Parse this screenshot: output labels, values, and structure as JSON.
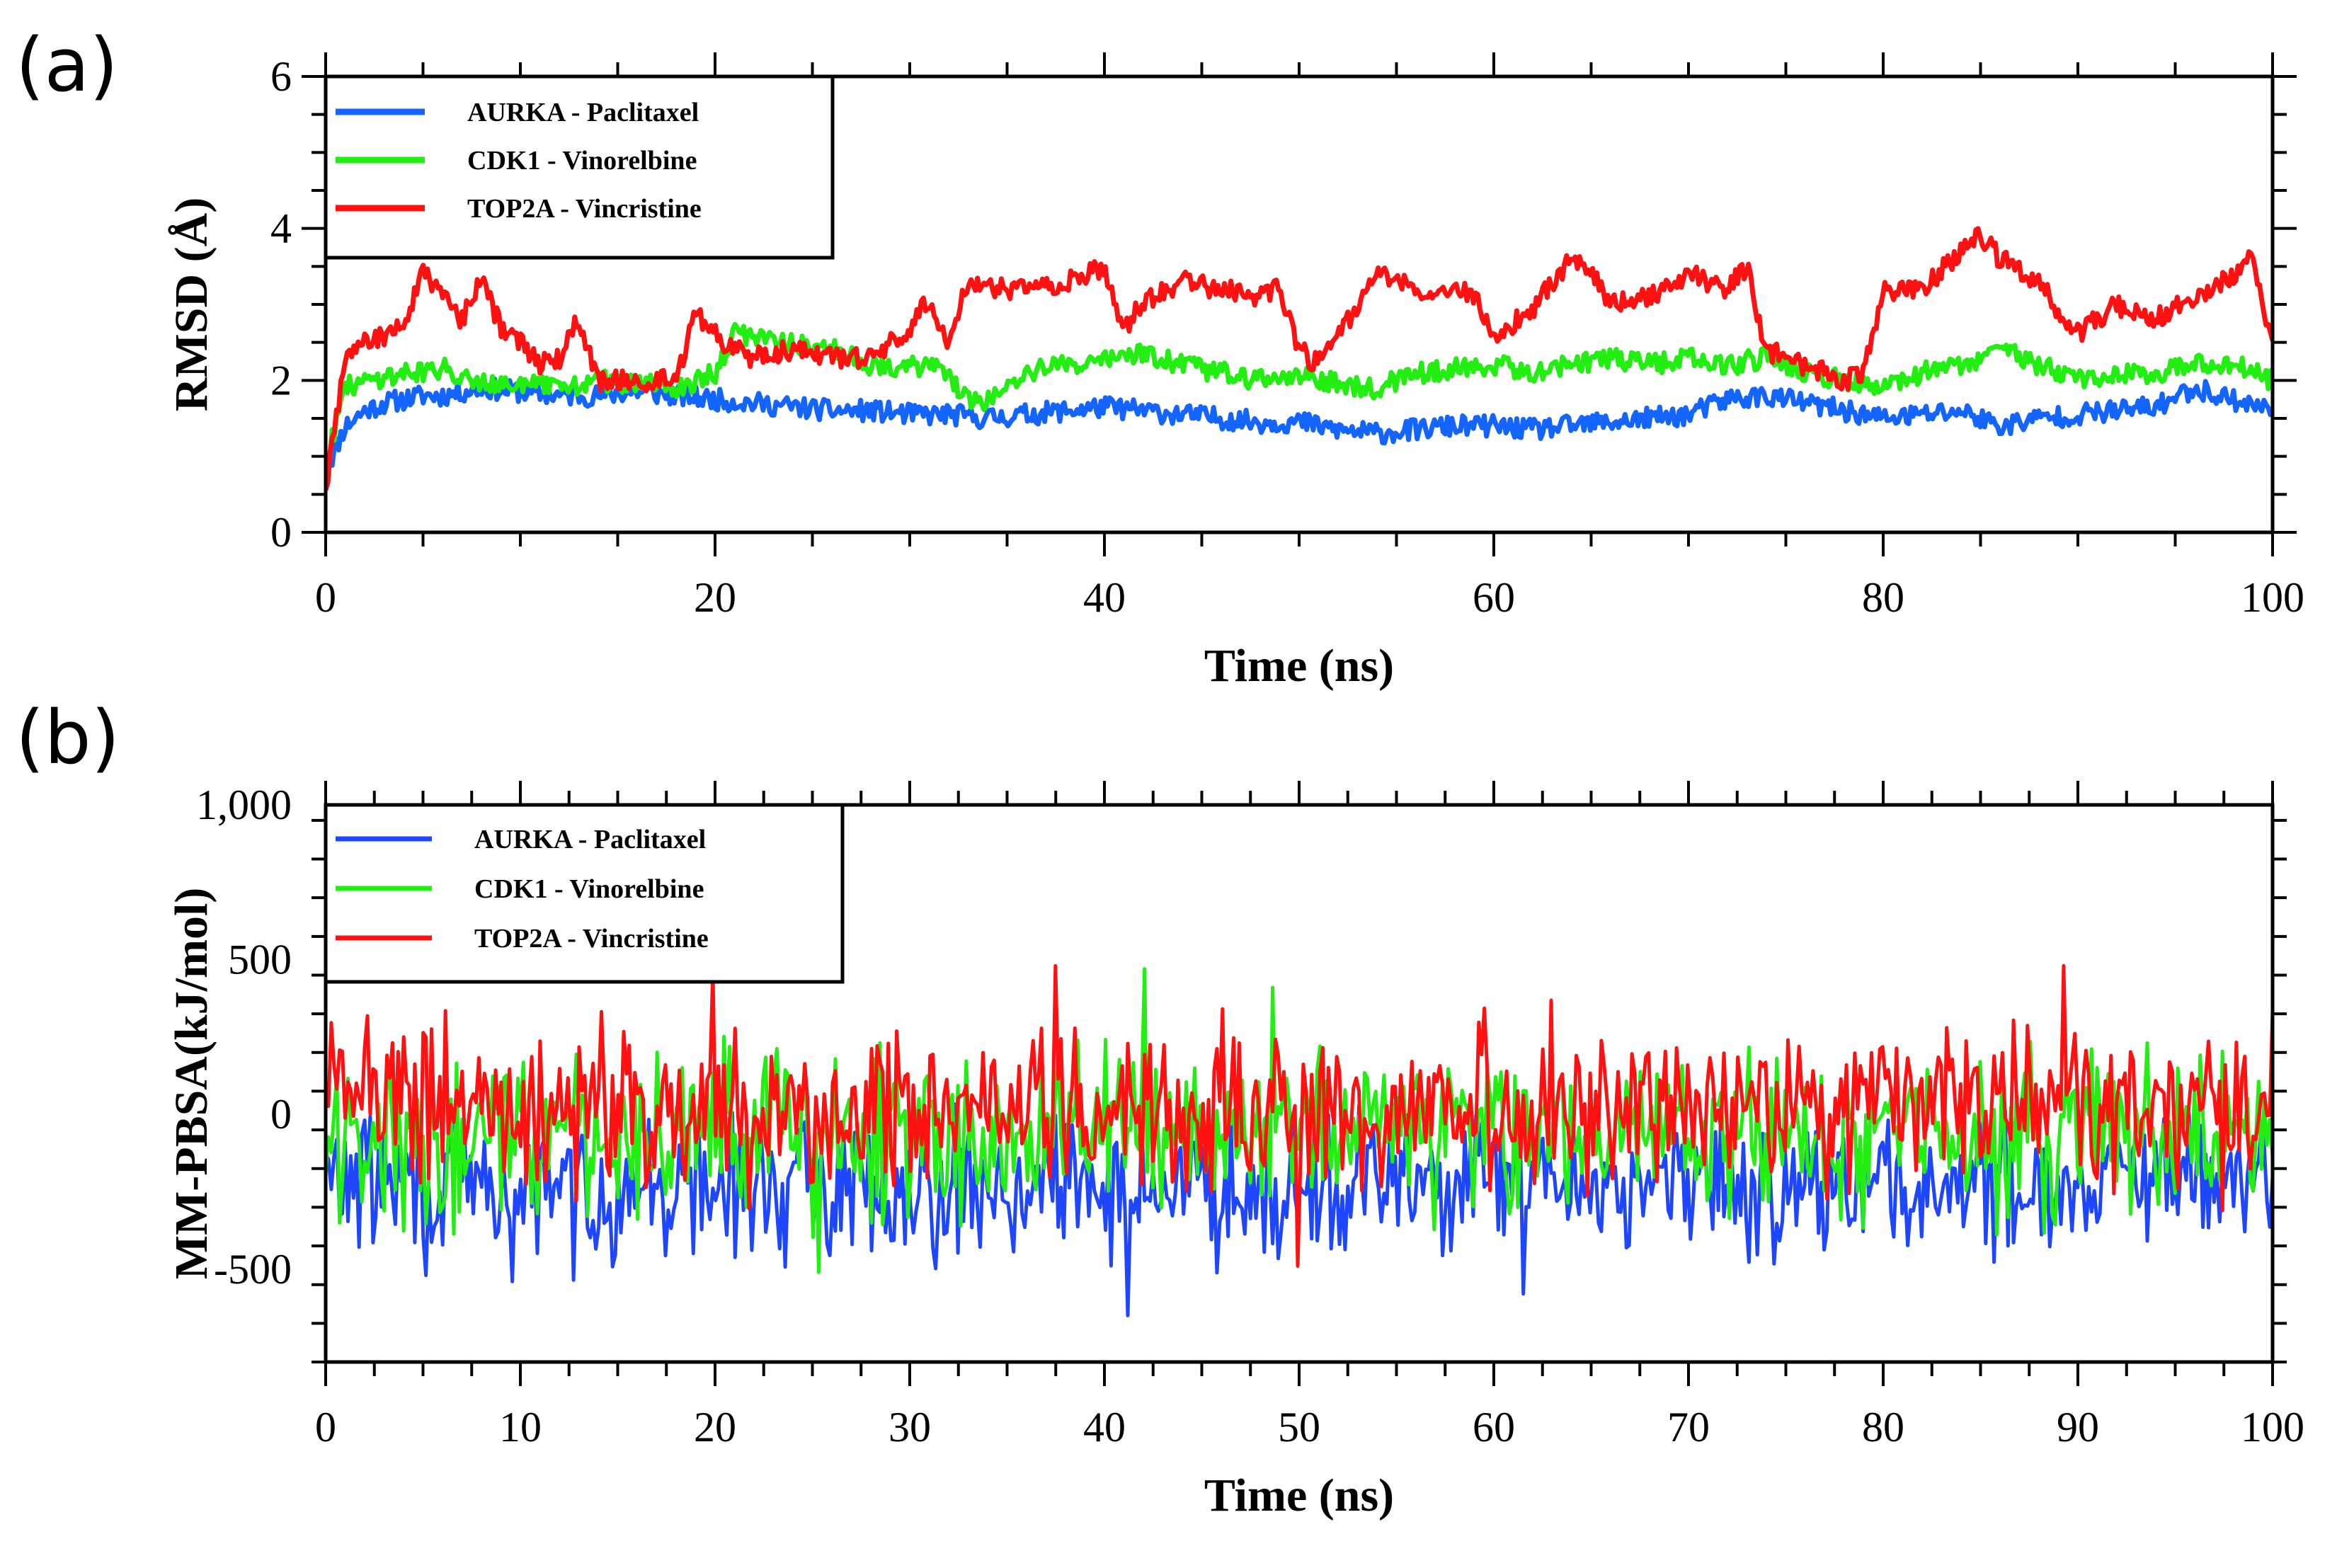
{
  "figure": {
    "panel_a_label": "(a)",
    "panel_b_label": "(b)"
  },
  "chart_data": [
    {
      "type": "line",
      "panel": "(a)",
      "title": "",
      "xlabel": "Time (ns)",
      "ylabel": "RMSD (Å)",
      "xlim": [
        0,
        100
      ],
      "ylim": [
        0,
        6
      ],
      "xticks": [
        0,
        20,
        40,
        60,
        80,
        100
      ],
      "yticks": [
        0,
        2,
        4,
        6
      ],
      "xtick_labels": [
        "0",
        "20",
        "40",
        "60",
        "80",
        "100"
      ],
      "ytick_labels": [
        "0",
        "2",
        "4",
        "6"
      ],
      "legend_position": "top-left",
      "grid": false,
      "series": [
        {
          "name": "AURKA - Paclitaxel",
          "color": "#1464ff",
          "x": [
            0,
            1,
            2,
            3,
            4,
            5,
            6,
            8,
            10,
            12,
            14,
            16,
            18,
            20,
            22,
            24,
            26,
            28,
            30,
            32,
            34,
            36,
            38,
            40,
            42,
            44,
            46,
            48,
            50,
            52,
            54,
            56,
            58,
            60,
            62,
            64,
            66,
            68,
            70,
            72,
            74,
            76,
            78,
            80,
            82,
            84,
            86,
            88,
            90,
            92,
            94,
            96,
            98,
            100
          ],
          "y": [
            0.8,
            1.4,
            1.6,
            1.7,
            1.75,
            1.8,
            1.8,
            1.9,
            1.85,
            1.8,
            1.8,
            1.85,
            1.8,
            1.75,
            1.7,
            1.65,
            1.6,
            1.6,
            1.55,
            1.55,
            1.5,
            1.55,
            1.6,
            1.65,
            1.6,
            1.55,
            1.5,
            1.45,
            1.45,
            1.35,
            1.3,
            1.35,
            1.4,
            1.4,
            1.35,
            1.4,
            1.45,
            1.5,
            1.55,
            1.75,
            1.8,
            1.7,
            1.6,
            1.5,
            1.55,
            1.6,
            1.4,
            1.5,
            1.55,
            1.6,
            1.65,
            1.9,
            1.75,
            1.6
          ]
        },
        {
          "name": "CDK1 - Vinorelbine",
          "color": "#22ee11",
          "x": [
            0,
            1,
            2,
            3,
            4,
            6,
            8,
            10,
            12,
            14,
            16,
            18,
            20,
            21,
            22,
            24,
            26,
            28,
            30,
            32,
            33,
            34,
            36,
            38,
            40,
            42,
            44,
            46,
            48,
            50,
            52,
            54,
            56,
            58,
            60,
            62,
            64,
            66,
            68,
            70,
            72,
            74,
            76,
            78,
            80,
            82,
            84,
            86,
            88,
            90,
            92,
            94,
            96,
            98,
            100
          ],
          "y": [
            0.9,
            1.9,
            2.0,
            2.05,
            2.1,
            2.15,
            2.0,
            1.95,
            1.9,
            2.0,
            1.95,
            1.9,
            2.1,
            2.6,
            2.6,
            2.5,
            2.4,
            2.2,
            2.2,
            2.1,
            1.7,
            1.75,
            2.1,
            2.2,
            2.3,
            2.35,
            2.2,
            2.1,
            2.0,
            2.05,
            1.95,
            1.9,
            2.1,
            2.15,
            2.2,
            2.1,
            2.2,
            2.3,
            2.2,
            2.3,
            2.2,
            2.3,
            2.1,
            2.0,
            1.9,
            2.1,
            2.2,
            2.4,
            2.2,
            2.0,
            2.1,
            2.1,
            2.2,
            2.2,
            2.0
          ]
        },
        {
          "name": "TOP2A - Vincristine",
          "color": "#ff1111",
          "x": [
            0,
            1,
            2,
            4,
            5,
            6,
            7,
            8,
            9,
            10,
            11,
            12,
            13,
            14,
            16,
            18,
            19,
            20,
            21,
            22,
            24,
            26,
            28,
            30,
            31,
            32,
            33,
            34,
            36,
            38,
            40,
            41,
            42,
            44,
            46,
            48,
            49,
            50,
            51,
            52,
            53,
            54,
            56,
            58,
            59,
            60,
            62,
            63,
            64,
            65,
            66,
            68,
            70,
            72,
            73,
            74,
            76,
            78,
            79,
            80,
            82,
            84,
            85,
            86,
            88,
            89,
            90,
            92,
            94,
            96,
            98,
            99,
            100
          ],
          "y": [
            0.6,
            2.3,
            2.5,
            2.7,
            3.4,
            3.1,
            2.8,
            3.3,
            2.7,
            2.5,
            2.2,
            2.3,
            2.8,
            2.0,
            2.0,
            2.0,
            2.9,
            2.6,
            2.4,
            2.3,
            2.4,
            2.3,
            2.3,
            2.7,
            3.1,
            2.5,
            3.3,
            3.2,
            3.2,
            3.3,
            3.5,
            2.7,
            3.0,
            3.3,
            3.2,
            3.1,
            3.2,
            2.4,
            2.2,
            2.7,
            2.9,
            3.4,
            3.2,
            3.2,
            3.1,
            2.6,
            2.9,
            3.3,
            3.6,
            3.5,
            3.0,
            3.1,
            3.4,
            3.2,
            3.5,
            2.4,
            2.2,
            2.0,
            2.1,
            3.2,
            3.2,
            3.7,
            3.9,
            3.6,
            3.3,
            2.9,
            2.6,
            3.0,
            2.8,
            3.1,
            3.4,
            3.6,
            2.5
          ]
        }
      ]
    },
    {
      "type": "line",
      "panel": "(b)",
      "title": "",
      "xlabel": "Time (ns)",
      "ylabel": "MM-PBSA(kJ/mol)",
      "xlim": [
        0,
        100
      ],
      "ylim": [
        -800,
        1000
      ],
      "xticks": [
        0,
        10,
        20,
        30,
        40,
        50,
        60,
        70,
        80,
        90,
        100
      ],
      "yticks": [
        -500,
        0,
        500,
        1000
      ],
      "xtick_labels": [
        "0",
        "10",
        "20",
        "30",
        "40",
        "50",
        "60",
        "70",
        "80",
        "90",
        "100"
      ],
      "ytick_labels": [
        "-500",
        "0",
        "500",
        "1,000"
      ],
      "legend_position": "top-left",
      "grid": false,
      "series": [
        {
          "name": "AURKA - Paclitaxel",
          "color": "#1e46ff",
          "noisy": true,
          "mean": -230,
          "amplitude": 190,
          "samples": 700,
          "x": [
            0,
            10,
            20,
            30,
            40,
            50,
            60,
            70,
            80,
            90,
            100
          ],
          "y": [
            -200,
            -250,
            -240,
            -230,
            -240,
            -230,
            -220,
            -230,
            -230,
            -220,
            -220
          ],
          "extremes": [
            {
              "x": 41.2,
              "y": -650
            },
            {
              "x": 9.6,
              "y": -540
            },
            {
              "x": 61.5,
              "y": -580
            },
            {
              "x": 5.2,
              "y": -520
            }
          ]
        },
        {
          "name": "CDK1 - Vinorelbine",
          "color": "#22ee11",
          "noisy": true,
          "mean": -60,
          "amplitude": 230,
          "samples": 700,
          "x": [
            0,
            10,
            20,
            30,
            40,
            50,
            60,
            70,
            80,
            90,
            100
          ],
          "y": [
            -80,
            -70,
            -60,
            -60,
            -50,
            -60,
            -60,
            -50,
            -60,
            -50,
            -60
          ],
          "extremes": [
            {
              "x": 42.0,
              "y": 470
            },
            {
              "x": 25.3,
              "y": -510
            },
            {
              "x": 48.6,
              "y": 410
            }
          ]
        },
        {
          "name": "TOP2A - Vincristine",
          "color": "#ff1111",
          "noisy": true,
          "mean": 20,
          "amplitude": 220,
          "samples": 700,
          "x": [
            0,
            10,
            20,
            30,
            40,
            50,
            60,
            70,
            80,
            90,
            100
          ],
          "y": [
            80,
            40,
            30,
            20,
            20,
            10,
            10,
            20,
            10,
            20,
            0
          ],
          "extremes": [
            {
              "x": 37.5,
              "y": 480
            },
            {
              "x": 19.9,
              "y": 460
            },
            {
              "x": 89.2,
              "y": 480
            },
            {
              "x": 49.9,
              "y": -490
            }
          ]
        }
      ]
    }
  ]
}
